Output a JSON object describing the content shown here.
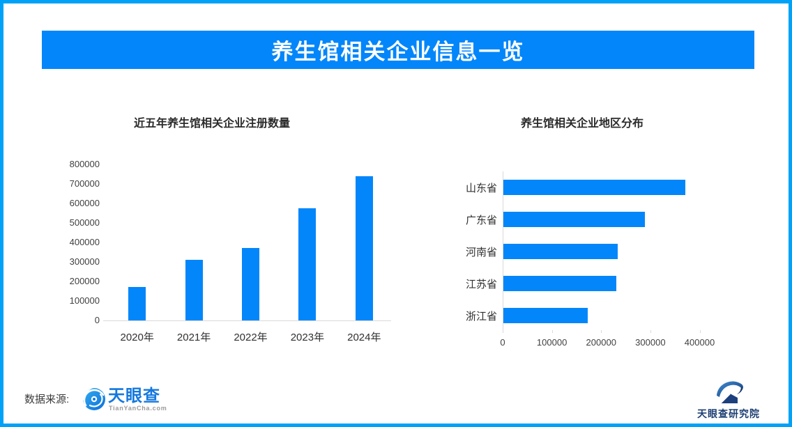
{
  "page": {
    "border_color": "#00a2f7",
    "background": "#ffffff",
    "accent_blue": "#0386fa"
  },
  "header": {
    "title": "养生馆相关企业信息一览",
    "bg_color": "#0386fa",
    "text_color": "#ffffff"
  },
  "chart_data": [
    {
      "type": "bar",
      "orientation": "vertical",
      "title": "近五年养生馆相关企业注册数量",
      "categories": [
        "2020年",
        "2021年",
        "2022年",
        "2023年",
        "2024年"
      ],
      "values": [
        170000,
        310000,
        370000,
        575000,
        740000
      ],
      "ylim": [
        0,
        800000
      ],
      "ytick_step": 100000,
      "bar_color": "#0386fa",
      "grid": false,
      "legend": "none"
    },
    {
      "type": "bar",
      "orientation": "horizontal",
      "title": "养生馆相关企业地区分布",
      "categories": [
        "山东省",
        "广东省",
        "河南省",
        "江苏省",
        "浙江省"
      ],
      "values": [
        370000,
        287000,
        232000,
        230000,
        172000
      ],
      "xlim": [
        0,
        400000
      ],
      "xtick_step": 100000,
      "bar_color": "#0386fa",
      "grid": false,
      "legend": "none"
    }
  ],
  "footer": {
    "source_label": "数据来源:",
    "tianyancha_logo": {
      "icon": "tianyancha-eye-icon",
      "name": "天眼查",
      "domain": "TianYanCha.com",
      "brand_color": "#1478df"
    },
    "research_logo": {
      "icon": "tianyancha-research-icon",
      "name": "天眼查研究院",
      "text_color": "#1d3e73"
    }
  }
}
